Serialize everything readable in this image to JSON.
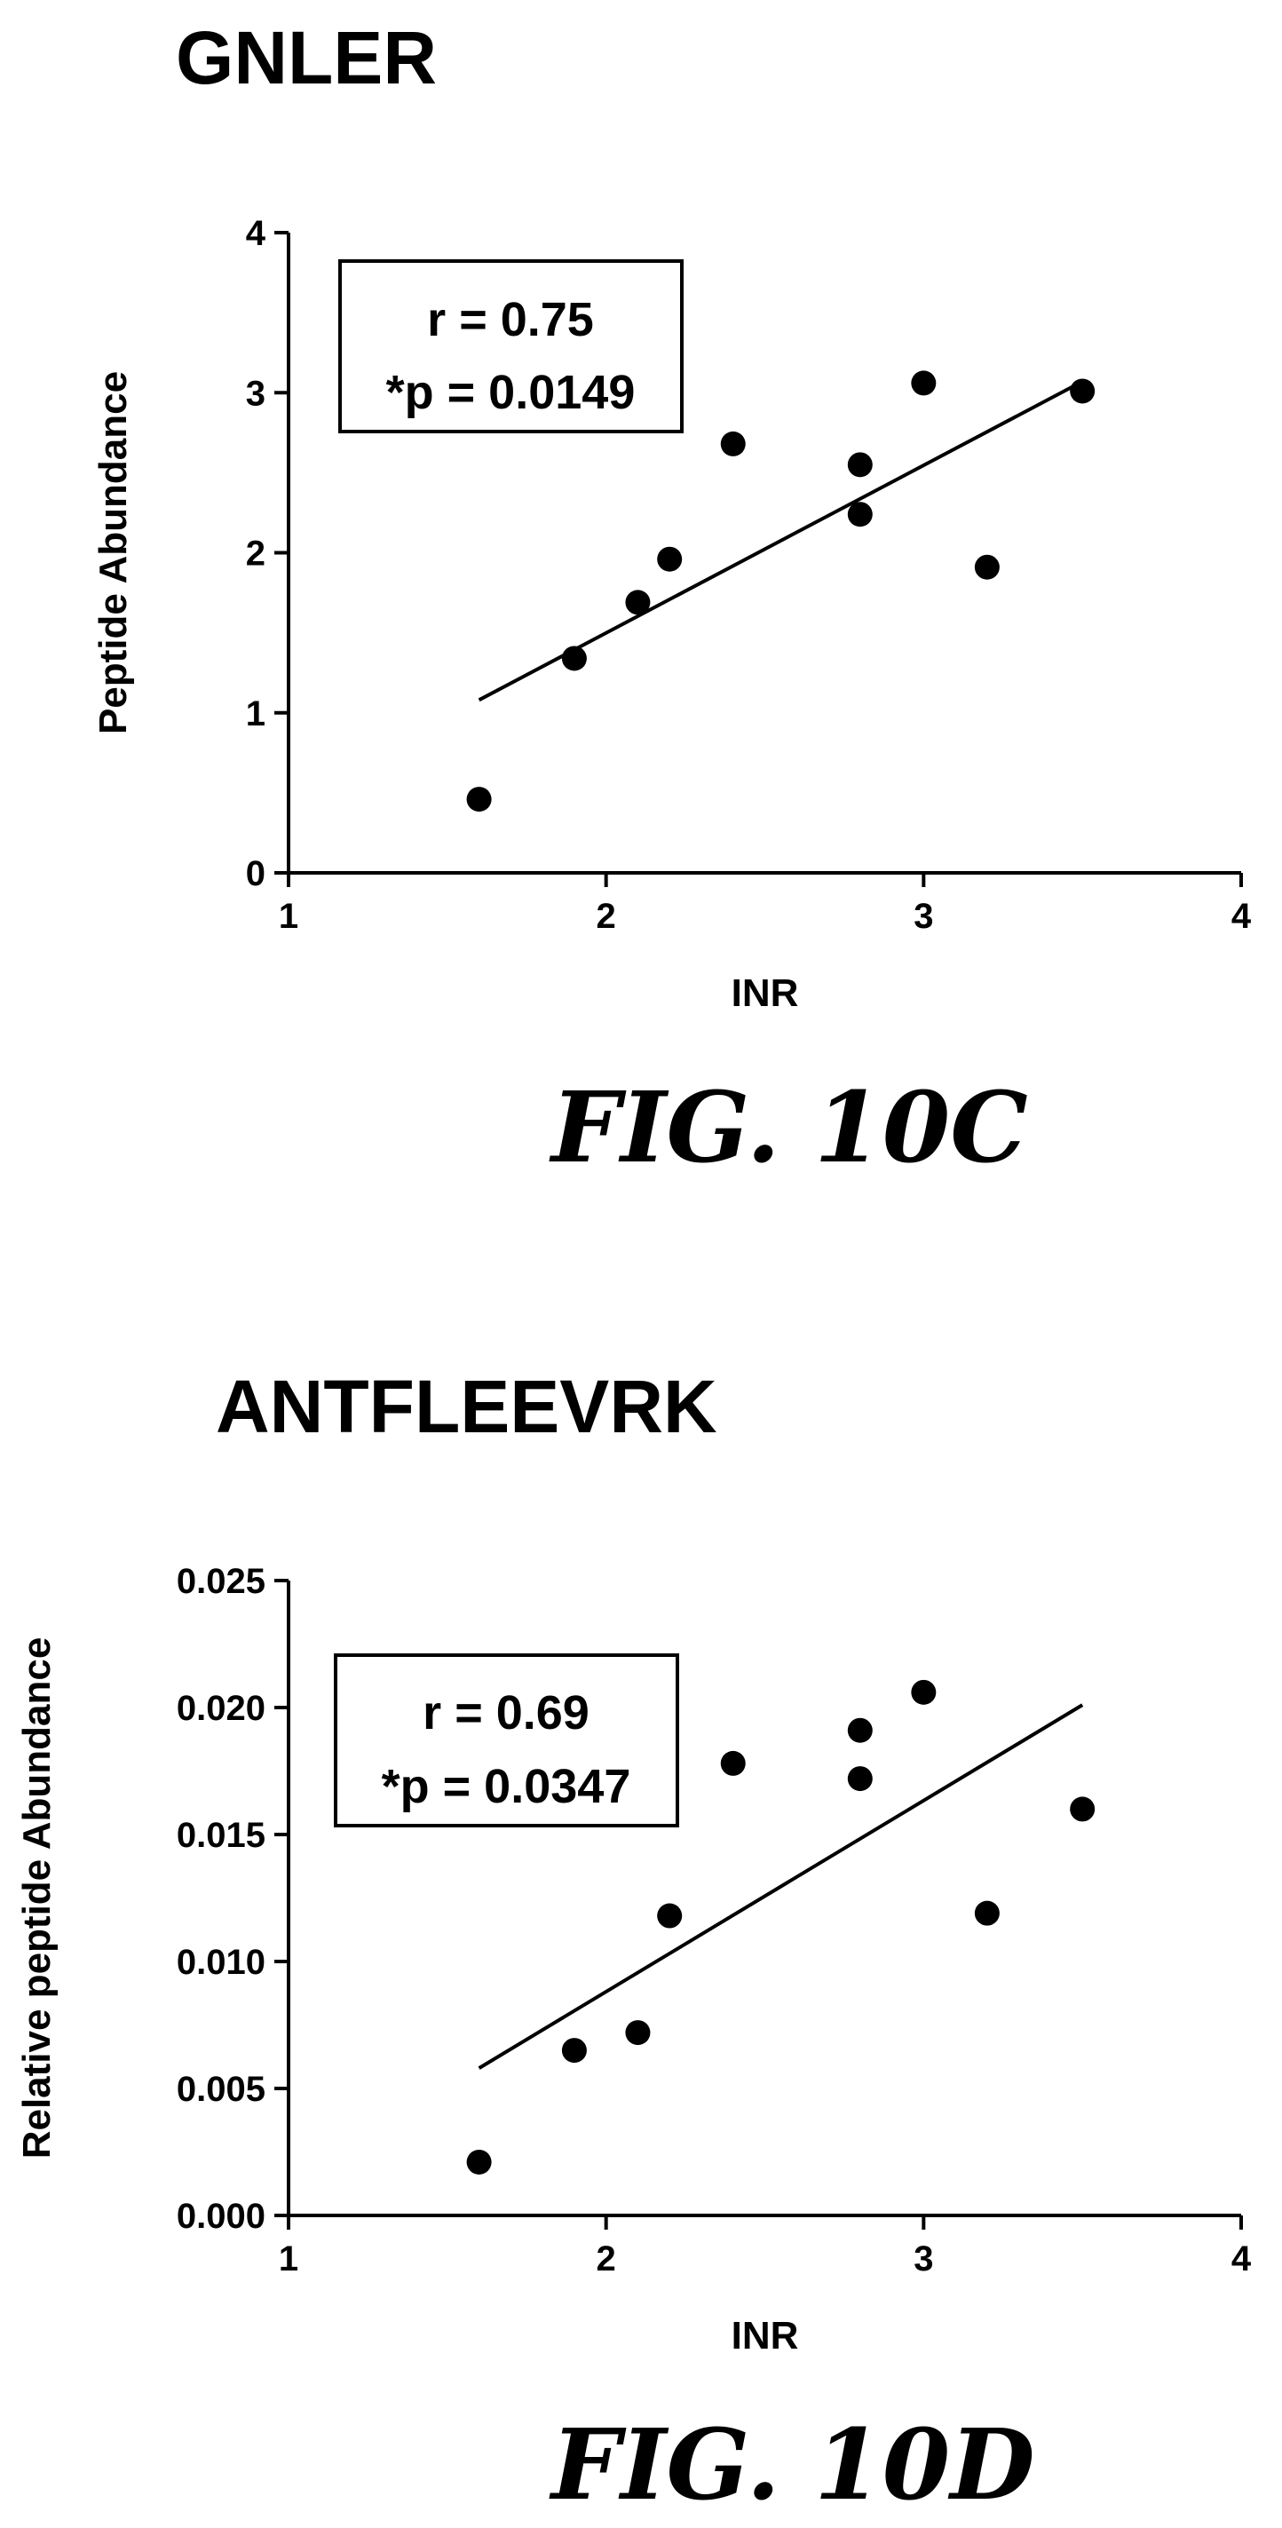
{
  "chart_data": [
    {
      "type": "scatter",
      "title": "GNLER",
      "xlabel": "INR",
      "ylabel": "Peptide Abundance",
      "xlim": [
        1,
        4
      ],
      "ylim": [
        0,
        4
      ],
      "xticks": [
        "1",
        "2",
        "3",
        "4"
      ],
      "yticks": [
        "0",
        "1",
        "2",
        "3",
        "4"
      ],
      "points": [
        {
          "x": 1.6,
          "y": 0.46
        },
        {
          "x": 1.9,
          "y": 1.34
        },
        {
          "x": 2.1,
          "y": 1.69
        },
        {
          "x": 2.2,
          "y": 1.96
        },
        {
          "x": 2.4,
          "y": 2.68
        },
        {
          "x": 2.8,
          "y": 2.55
        },
        {
          "x": 2.8,
          "y": 2.24
        },
        {
          "x": 3.0,
          "y": 3.06
        },
        {
          "x": 3.2,
          "y": 1.91
        },
        {
          "x": 3.5,
          "y": 3.01
        }
      ],
      "fit_line": [
        {
          "x": 1.6,
          "y": 1.08
        },
        {
          "x": 3.5,
          "y": 3.07
        }
      ],
      "stat_r": "r =  0.75",
      "stat_p": "*p = 0.0149",
      "caption": "FIG. 10C"
    },
    {
      "type": "scatter",
      "title": "ANTFLEEVRK",
      "xlabel": "INR",
      "ylabel": "Relative peptide Abundance",
      "xlim": [
        1,
        4
      ],
      "ylim": [
        0,
        0.025
      ],
      "xticks": [
        "1",
        "2",
        "3",
        "4"
      ],
      "yticks": [
        "0.000",
        "0.005",
        "0.010",
        "0.015",
        "0.020",
        "0.025"
      ],
      "points": [
        {
          "x": 1.6,
          "y": 0.0021
        },
        {
          "x": 1.9,
          "y": 0.0065
        },
        {
          "x": 2.1,
          "y": 0.0072
        },
        {
          "x": 2.2,
          "y": 0.0118
        },
        {
          "x": 2.4,
          "y": 0.0178
        },
        {
          "x": 2.8,
          "y": 0.0191
        },
        {
          "x": 2.8,
          "y": 0.0172
        },
        {
          "x": 3.0,
          "y": 0.0206
        },
        {
          "x": 3.2,
          "y": 0.0119
        },
        {
          "x": 3.5,
          "y": 0.016
        }
      ],
      "fit_line": [
        {
          "x": 1.6,
          "y": 0.0058
        },
        {
          "x": 3.5,
          "y": 0.0201
        }
      ],
      "stat_r": "r =  0.69",
      "stat_p": "*p = 0.0347",
      "caption": "FIG. 10D"
    }
  ]
}
